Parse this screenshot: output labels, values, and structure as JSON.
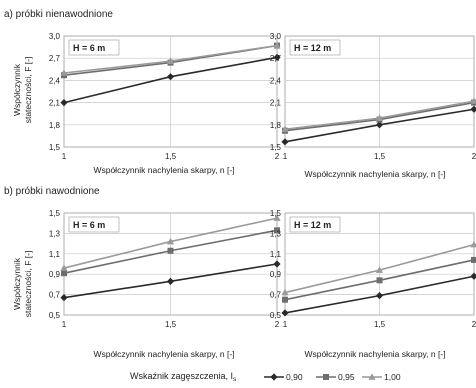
{
  "sections": [
    {
      "label": "a) próbki nienawodnione"
    },
    {
      "label": "b) próbki nawodnione"
    }
  ],
  "ylabel_line1": "Współczynnik",
  "ylabel_line2": "stateczności, F [-]",
  "xlabel": "Współczynnik nachylenia skarpy, n [-]",
  "legend": {
    "title": "Wskaźnik zagęszczenia, I",
    "title_sub": "s",
    "items": [
      {
        "label": "0,90",
        "color": "#2a2a2a",
        "marker": "diamond"
      },
      {
        "label": "0,95",
        "color": "#6e6e6e",
        "marker": "square"
      },
      {
        "label": "1,00",
        "color": "#9a9a9a",
        "marker": "triangle"
      }
    ]
  },
  "chart_data": [
    {
      "type": "line",
      "title": "H = 6 m",
      "x": [
        1,
        1.5,
        2
      ],
      "x_ticks": [
        "1",
        "1,5",
        "2"
      ],
      "ylim": [
        1.5,
        3.0
      ],
      "y_ticks": [
        "1,5",
        "1,8",
        "2,1",
        "2,4",
        "2,7",
        "3,0"
      ],
      "grid": true,
      "series": [
        {
          "name": "0,90",
          "values": [
            2.1,
            2.45,
            2.71
          ]
        },
        {
          "name": "0,95",
          "values": [
            2.47,
            2.64,
            2.87
          ]
        },
        {
          "name": "1,00",
          "values": [
            2.5,
            2.66,
            2.87
          ]
        }
      ]
    },
    {
      "type": "line",
      "title": "H = 12 m",
      "x": [
        1,
        1.5,
        2
      ],
      "x_ticks": [
        "1",
        "1,5",
        "2"
      ],
      "ylim": [
        1.5,
        3.0
      ],
      "y_ticks": [
        "1,5",
        "1,8",
        "2,1",
        "2,4",
        "2,7",
        "3,0"
      ],
      "grid": true,
      "series": [
        {
          "name": "0,90",
          "values": [
            1.57,
            1.8,
            2.01
          ]
        },
        {
          "name": "0,95",
          "values": [
            1.72,
            1.87,
            2.1
          ]
        },
        {
          "name": "1,00",
          "values": [
            1.74,
            1.89,
            2.12
          ]
        }
      ]
    },
    {
      "type": "line",
      "title": "H = 6 m",
      "x": [
        1,
        1.5,
        2
      ],
      "x_ticks": [
        "1",
        "1,5",
        "2"
      ],
      "ylim": [
        0.5,
        1.5
      ],
      "y_ticks": [
        "0,5",
        "0,7",
        "0,9",
        "1,1",
        "1,3",
        "1,5"
      ],
      "grid": true,
      "series": [
        {
          "name": "0,90",
          "values": [
            0.67,
            0.83,
            1.0
          ]
        },
        {
          "name": "0,95",
          "values": [
            0.91,
            1.13,
            1.33
          ]
        },
        {
          "name": "1,00",
          "values": [
            0.96,
            1.22,
            1.45
          ]
        }
      ]
    },
    {
      "type": "line",
      "title": "H = 12 m",
      "x": [
        1,
        1.5,
        2
      ],
      "x_ticks": [
        "1",
        "1,5",
        "2"
      ],
      "ylim": [
        0.5,
        1.5
      ],
      "y_ticks": [
        "0,5",
        "0,7",
        "0,9",
        "1,1",
        "1,3",
        "1,5"
      ],
      "grid": true,
      "series": [
        {
          "name": "0,90",
          "values": [
            0.52,
            0.69,
            0.88
          ]
        },
        {
          "name": "0,95",
          "values": [
            0.65,
            0.84,
            1.04
          ]
        },
        {
          "name": "1,00",
          "values": [
            0.72,
            0.94,
            1.19
          ]
        }
      ]
    }
  ]
}
